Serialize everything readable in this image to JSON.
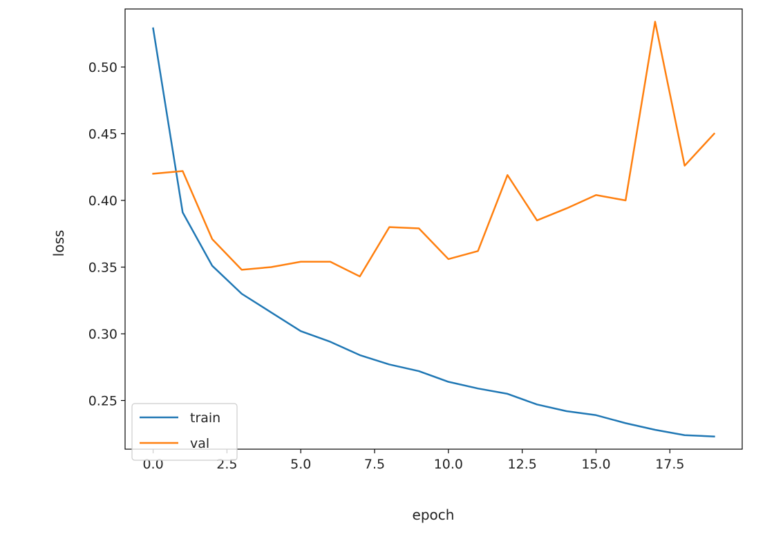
{
  "chart_data": {
    "type": "line",
    "title": "",
    "xlabel": "epoch",
    "ylabel": "loss",
    "xlim": [
      -0.95,
      19.95
    ],
    "ylim": [
      0.2135,
      0.5435
    ],
    "grid": false,
    "legend_position": "lower-left",
    "x_ticks": [
      0.0,
      2.5,
      5.0,
      7.5,
      10.0,
      12.5,
      15.0,
      17.5
    ],
    "x_tick_labels": [
      "0.0",
      "2.5",
      "5.0",
      "7.5",
      "10.0",
      "12.5",
      "15.0",
      "17.5"
    ],
    "y_ticks": [
      0.25,
      0.3,
      0.35,
      0.4,
      0.45,
      0.5
    ],
    "y_tick_labels": [
      "0.25",
      "0.30",
      "0.35",
      "0.40",
      "0.45",
      "0.50"
    ],
    "x": [
      0,
      1,
      2,
      3,
      4,
      5,
      6,
      7,
      8,
      9,
      10,
      11,
      12,
      13,
      14,
      15,
      16,
      17,
      18,
      19
    ],
    "series": [
      {
        "name": "train",
        "color": "#1f77b4",
        "values": [
          0.529,
          0.391,
          0.351,
          0.33,
          0.316,
          0.302,
          0.294,
          0.284,
          0.277,
          0.272,
          0.264,
          0.259,
          0.255,
          0.247,
          0.242,
          0.239,
          0.233,
          0.228,
          0.224,
          0.223
        ]
      },
      {
        "name": "val",
        "color": "#ff7f0e",
        "values": [
          0.42,
          0.422,
          0.371,
          0.348,
          0.35,
          0.354,
          0.354,
          0.343,
          0.38,
          0.379,
          0.356,
          0.362,
          0.419,
          0.385,
          0.394,
          0.404,
          0.4,
          0.534,
          0.426,
          0.45
        ]
      }
    ]
  }
}
